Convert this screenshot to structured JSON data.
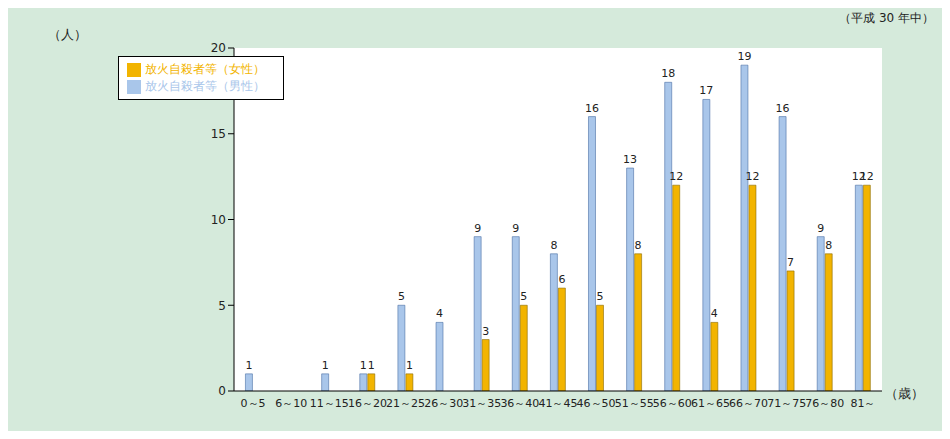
{
  "chart_data": {
    "type": "bar",
    "subtitle": "（平成 30 年中）",
    "y_label": "（人）",
    "x_label": "（歳）",
    "categories": [
      "0～5",
      "6～10",
      "11～15",
      "16～20",
      "21～25",
      "26～30",
      "31～35",
      "36～40",
      "41～45",
      "46～50",
      "51～55",
      "56～60",
      "61～65",
      "66～70",
      "71～75",
      "76～80",
      "81～"
    ],
    "series": [
      {
        "name": "放火自殺者等（男性）",
        "color": "#a9c6ea",
        "values": [
          1,
          0,
          1,
          1,
          5,
          4,
          9,
          9,
          8,
          16,
          13,
          18,
          17,
          19,
          16,
          9,
          12
        ]
      },
      {
        "name": "放火自殺者等（女性）",
        "color": "#f2b400",
        "values": [
          0,
          0,
          0,
          1,
          1,
          0,
          3,
          5,
          6,
          5,
          8,
          12,
          4,
          12,
          7,
          8,
          12
        ]
      }
    ],
    "ylim": [
      0,
      20
    ],
    "yticks": [
      0,
      5,
      10,
      15,
      20
    ],
    "grid": false,
    "legend": "top-left",
    "data_labels": true
  }
}
